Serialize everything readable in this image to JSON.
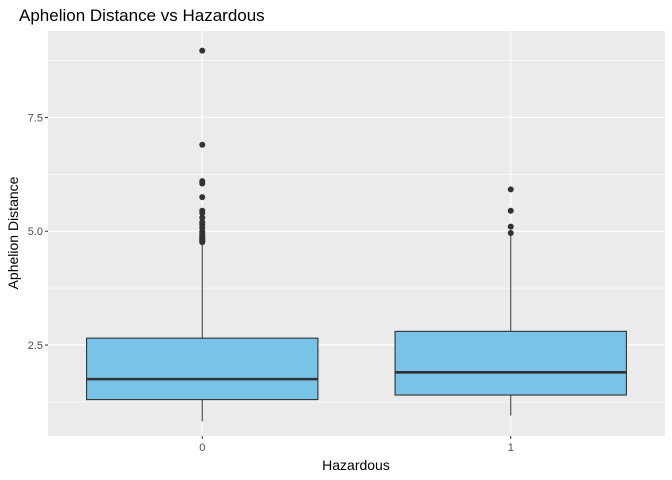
{
  "chart_data": {
    "type": "boxplot",
    "title": "Aphelion Distance vs Hazardous",
    "xlabel": "Hazardous",
    "ylabel": "Aphelion Distance",
    "categories": [
      "0",
      "1"
    ],
    "ylim": [
      0.5,
      9.4
    ],
    "yticks": [
      2.5,
      5.0,
      7.5
    ],
    "ytick_labels": [
      "2.5",
      "5.0",
      "7.5"
    ],
    "grid": true,
    "fill_color": "#78c3e6",
    "panel_color": "#ebebeb",
    "boxes": [
      {
        "category": "0",
        "whisker_low": 0.82,
        "q1": 1.3,
        "median": 1.75,
        "q3": 2.65,
        "whisker_high": 4.72,
        "outliers": [
          4.76,
          4.78,
          4.8,
          4.82,
          4.85,
          4.88,
          4.91,
          4.95,
          5.0,
          5.08,
          5.15,
          5.2,
          5.3,
          5.4,
          5.45,
          5.75,
          6.05,
          6.1,
          6.9,
          8.97
        ]
      },
      {
        "category": "1",
        "whisker_low": 0.95,
        "q1": 1.4,
        "median": 1.9,
        "q3": 2.8,
        "whisker_high": 4.92,
        "outliers": [
          4.96,
          5.1,
          5.45,
          5.92
        ]
      }
    ]
  }
}
